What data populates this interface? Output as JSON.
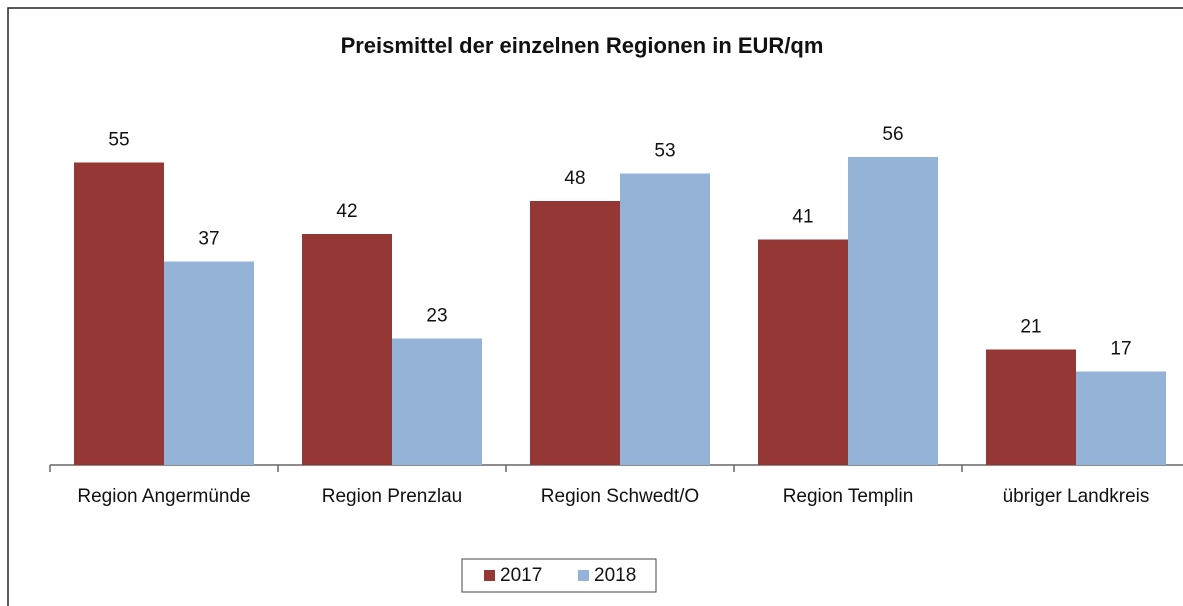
{
  "chart_data": {
    "type": "bar",
    "title": "Preismittel der einzelnen Regionen in EUR/qm",
    "categories": [
      "Region Angermünde",
      "Region Prenzlau",
      "Region Schwedt/O",
      "Region Templin",
      "übriger Landkreis"
    ],
    "series": [
      {
        "name": "2017",
        "color": "#953735",
        "values": [
          55,
          42,
          48,
          41,
          21
        ]
      },
      {
        "name": "2018",
        "color": "#95b3d7",
        "values": [
          37,
          23,
          53,
          56,
          17
        ]
      }
    ],
    "legend": "bottom"
  }
}
